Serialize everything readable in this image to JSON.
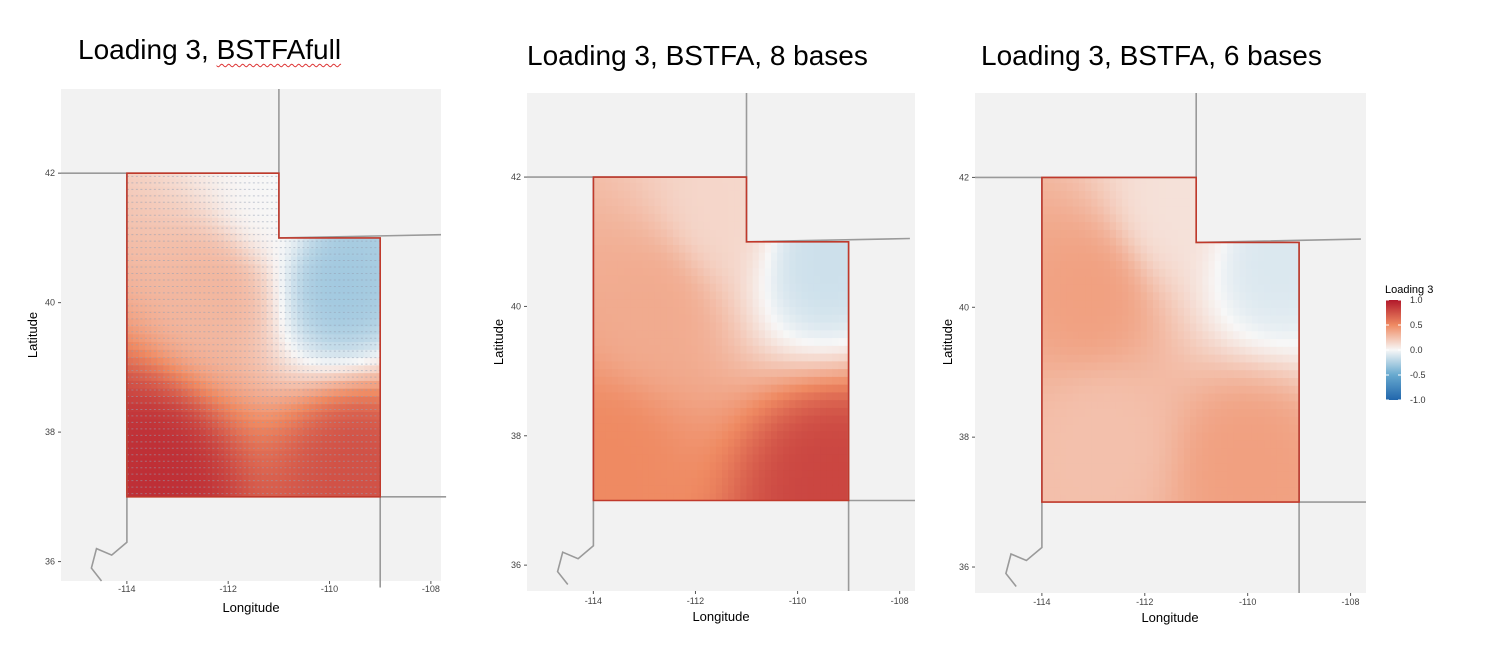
{
  "colors": {
    "panel_bg": "#f2f2f2",
    "border": "#a0a0a0",
    "state_outline": "#c0392b",
    "negative": "#2166ac",
    "neutral": "#f7f7f7",
    "positive": "#b2182b"
  },
  "chart_data": [
    {
      "type": "heatmap",
      "title_prefix": "Loading 3, ",
      "title_suffix": "BSTFAfull",
      "xlabel": "Longitude",
      "ylabel": "Latitude",
      "x_ticks": [
        "-114",
        "-112",
        "-110",
        "-108"
      ],
      "y_ticks": [
        "36",
        "38",
        "40",
        "42"
      ],
      "xlim": [
        -115.3,
        -107.8
      ],
      "ylim": [
        35.7,
        43.3
      ],
      "dotted_grid": true,
      "hotspots": [
        {
          "lon": -113.5,
          "lat": 37.3,
          "value": 0.9
        },
        {
          "lon": -109.5,
          "lat": 37.4,
          "value": 0.75
        },
        {
          "lon": -112.2,
          "lat": 40.2,
          "value": 0.3
        },
        {
          "lon": -109.8,
          "lat": 40.3,
          "value": -0.3
        },
        {
          "lon": -111.3,
          "lat": 41.6,
          "value": 0.0
        }
      ]
    },
    {
      "type": "heatmap",
      "title": "Loading 3, BSTFA, 8 bases",
      "xlabel": "Longitude",
      "ylabel": "Latitude",
      "x_ticks": [
        "-114",
        "-112",
        "-110",
        "-108"
      ],
      "y_ticks": [
        "36",
        "38",
        "40",
        "42"
      ],
      "xlim": [
        -115.3,
        -107.7
      ],
      "ylim": [
        35.6,
        43.3
      ],
      "dotted_grid": false,
      "hotspots": [
        {
          "lon": -109.3,
          "lat": 37.3,
          "value": 0.8
        },
        {
          "lon": -113.7,
          "lat": 37.6,
          "value": 0.5
        },
        {
          "lon": -112.8,
          "lat": 40.0,
          "value": 0.35
        },
        {
          "lon": -109.5,
          "lat": 40.7,
          "value": -0.15
        },
        {
          "lon": -111.5,
          "lat": 41.5,
          "value": 0.15
        }
      ]
    },
    {
      "type": "heatmap",
      "title": "Loading 3, BSTFA, 6 bases",
      "xlabel": "Longitude",
      "ylabel": "Latitude",
      "x_ticks": [
        "-114",
        "-112",
        "-110",
        "-108"
      ],
      "y_ticks": [
        "36",
        "38",
        "40",
        "42"
      ],
      "xlim": [
        -115.3,
        -107.7
      ],
      "ylim": [
        35.6,
        43.3
      ],
      "dotted_grid": false,
      "hotspots": [
        {
          "lon": -113.0,
          "lat": 40.2,
          "value": 0.4
        },
        {
          "lon": -110.0,
          "lat": 37.6,
          "value": 0.4
        },
        {
          "lon": -112.8,
          "lat": 38.0,
          "value": 0.25
        },
        {
          "lon": -109.5,
          "lat": 40.7,
          "value": -0.1
        },
        {
          "lon": -111.5,
          "lat": 41.5,
          "value": 0.1
        }
      ]
    }
  ],
  "legend": {
    "title": "Loading 3",
    "labels": [
      "1.0",
      "0.5",
      "0.0",
      "-0.5",
      "-1.0"
    ],
    "range": [
      -1,
      1
    ],
    "position": "right"
  }
}
